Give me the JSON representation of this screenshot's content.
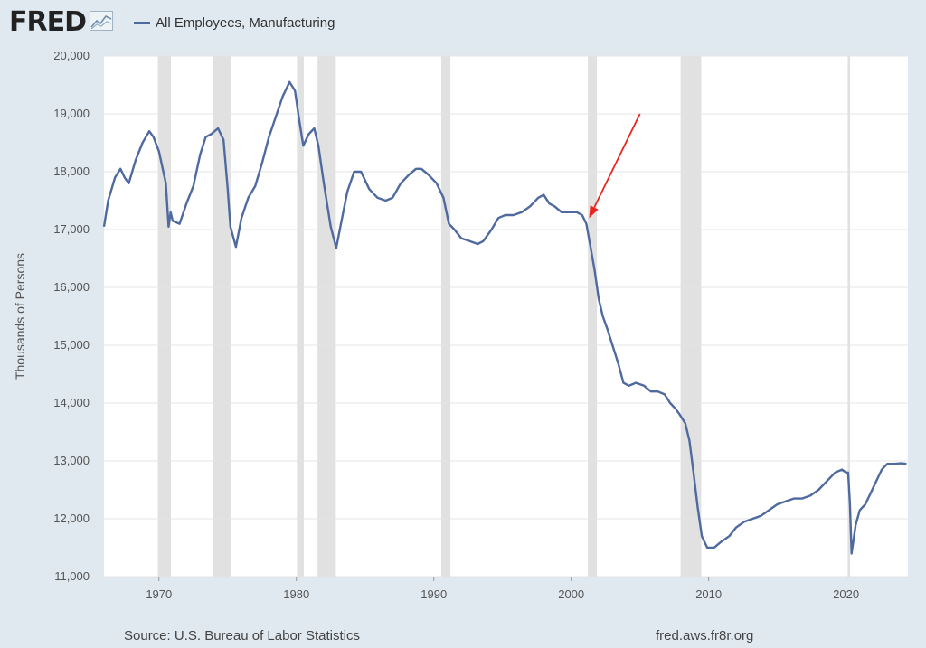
{
  "logo": {
    "text": "FRED",
    "icon": "line-chart-icon"
  },
  "colors": {
    "series": "#4f6a9e",
    "recession": "#e1e1e1",
    "annotation_arrow": "#e8261f",
    "background": "#e1e9f0"
  },
  "footer": {
    "source": "Source: U.S. Bureau of Labor Statistics",
    "site": "fred.aws.fr8r.org"
  },
  "chart_data": {
    "type": "line",
    "title": "",
    "xlabel": "",
    "ylabel": "Thousands of Persons",
    "xlim": [
      1966.0,
      2024.5
    ],
    "ylim": [
      11000,
      20000
    ],
    "grid": "horizontal",
    "legend_position": "top-left",
    "xticks": [
      1970,
      1980,
      1990,
      2000,
      2010,
      2020
    ],
    "yticks": [
      11000,
      12000,
      13000,
      14000,
      15000,
      16000,
      17000,
      18000,
      19000,
      20000
    ],
    "ytick_labels": [
      "11,000",
      "12,000",
      "13,000",
      "14,000",
      "15,000",
      "16,000",
      "17,000",
      "18,000",
      "19,000",
      "20,000"
    ],
    "recessions": [
      [
        1969.92,
        1970.87
      ],
      [
        1973.92,
        1975.21
      ],
      [
        1980.04,
        1980.54
      ],
      [
        1981.54,
        1982.87
      ],
      [
        1990.54,
        1991.21
      ],
      [
        2001.21,
        2001.87
      ],
      [
        2007.96,
        2009.46
      ],
      [
        2020.12,
        2020.29
      ]
    ],
    "series": [
      {
        "name": "All Employees, Manufacturing",
        "x": [
          1966.0,
          1966.3,
          1966.8,
          1967.2,
          1967.5,
          1967.8,
          1968.3,
          1968.8,
          1969.3,
          1969.6,
          1970.0,
          1970.5,
          1970.7,
          1970.85,
          1971.0,
          1971.5,
          1972.0,
          1972.5,
          1973.0,
          1973.4,
          1973.8,
          1974.3,
          1974.7,
          1975.0,
          1975.2,
          1975.6,
          1976.0,
          1976.5,
          1977.0,
          1977.5,
          1978.0,
          1978.5,
          1979.0,
          1979.5,
          1979.9,
          1980.2,
          1980.5,
          1980.9,
          1981.3,
          1981.6,
          1982.0,
          1982.5,
          1982.9,
          1983.2,
          1983.7,
          1984.2,
          1984.7,
          1985.3,
          1985.9,
          1986.5,
          1987.0,
          1987.6,
          1988.2,
          1988.7,
          1989.1,
          1989.6,
          1990.2,
          1990.7,
          1991.1,
          1991.5,
          1992.0,
          1992.6,
          1993.2,
          1993.6,
          1994.2,
          1994.7,
          1995.2,
          1995.8,
          1996.4,
          1997.0,
          1997.6,
          1998.0,
          1998.4,
          1998.8,
          1999.3,
          1999.8,
          2000.4,
          2000.8,
          2001.1,
          2001.4,
          2001.7,
          2002.0,
          2002.3,
          2002.6,
          2003.0,
          2003.4,
          2003.8,
          2004.2,
          2004.7,
          2005.3,
          2005.8,
          2006.3,
          2006.8,
          2007.2,
          2007.6,
          2007.9,
          2008.3,
          2008.6,
          2008.9,
          2009.2,
          2009.5,
          2009.9,
          2010.4,
          2010.9,
          2011.5,
          2012.0,
          2012.6,
          2013.2,
          2013.8,
          2014.4,
          2015.0,
          2015.6,
          2016.2,
          2016.8,
          2017.4,
          2018.0,
          2018.6,
          2019.2,
          2019.7,
          2020.0,
          2020.15,
          2020.28,
          2020.4,
          2020.7,
          2021.0,
          2021.4,
          2021.8,
          2022.2,
          2022.6,
          2023.0,
          2023.5,
          2024.0,
          2024.4
        ],
        "y": [
          17050,
          17500,
          17900,
          18050,
          17900,
          17800,
          18200,
          18500,
          18700,
          18600,
          18350,
          17800,
          17050,
          17300,
          17150,
          17100,
          17450,
          17750,
          18300,
          18600,
          18650,
          18750,
          18550,
          17700,
          17050,
          16700,
          17200,
          17550,
          17750,
          18150,
          18600,
          18950,
          19300,
          19550,
          19400,
          18900,
          18450,
          18650,
          18750,
          18450,
          17800,
          17050,
          16680,
          17050,
          17650,
          18000,
          18000,
          17700,
          17550,
          17500,
          17550,
          17800,
          17950,
          18050,
          18050,
          17950,
          17800,
          17550,
          17100,
          17000,
          16850,
          16800,
          16750,
          16800,
          17000,
          17200,
          17250,
          17250,
          17300,
          17400,
          17550,
          17600,
          17450,
          17400,
          17300,
          17300,
          17300,
          17250,
          17100,
          16700,
          16300,
          15800,
          15500,
          15300,
          15000,
          14700,
          14350,
          14300,
          14350,
          14300,
          14200,
          14200,
          14150,
          14000,
          13900,
          13800,
          13650,
          13350,
          12800,
          12200,
          11700,
          11500,
          11500,
          11600,
          11700,
          11850,
          11950,
          12000,
          12050,
          12150,
          12250,
          12300,
          12350,
          12350,
          12400,
          12500,
          12650,
          12800,
          12850,
          12800,
          12800,
          12250,
          11400,
          11900,
          12150,
          12250,
          12450,
          12650,
          12850,
          12950,
          12950,
          12960,
          12950
        ]
      }
    ]
  },
  "annotation": {
    "type": "arrow",
    "from": [
      2005.0,
      19000
    ],
    "to": [
      2001.3,
      17200
    ]
  }
}
